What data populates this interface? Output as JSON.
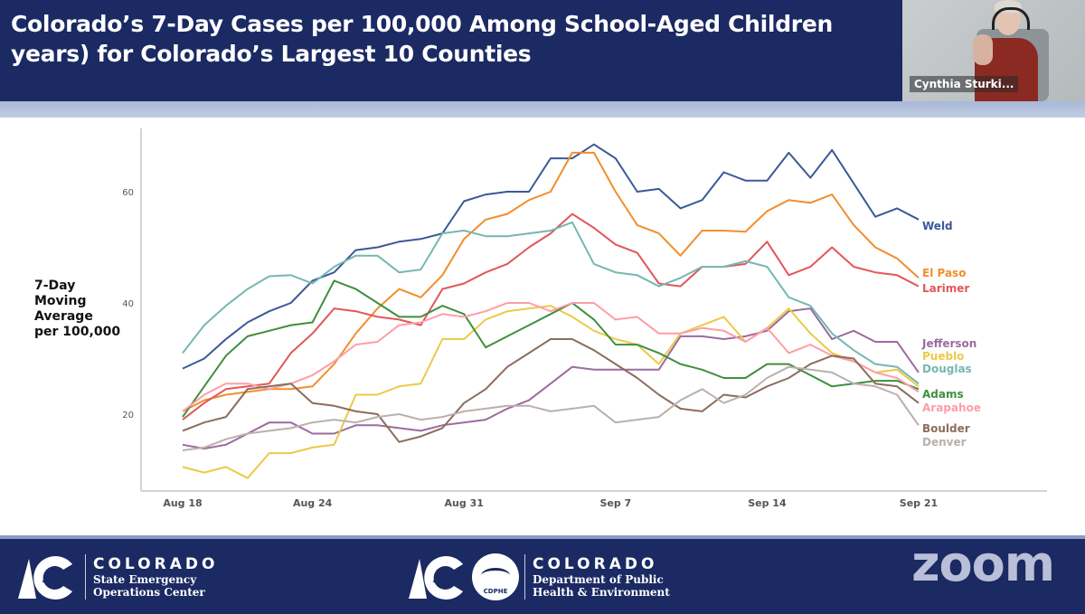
{
  "slide": {
    "title_line1": "Colorado’s 7-Day Cases per 100,000 Among School-Aged Children",
    "title_line2": "years) for Colorado’s Largest 10 Counties",
    "header_bg": "#1b2a63"
  },
  "video": {
    "participant_name": "Cynthia Sturki..."
  },
  "footer": {
    "logo1_title": "COLORADO",
    "logo1_sub1": "State Emergency",
    "logo1_sub2": "Operations Center",
    "logo2_badge": "CDPHE",
    "logo2_title": "COLORADO",
    "logo2_sub1": "Department of Public",
    "logo2_sub2": "Health & Environment",
    "app_watermark": "zoom"
  },
  "chart_data": {
    "type": "line",
    "title": "",
    "xlabel": "",
    "ylabel": "7-Day Moving Average per 100,000",
    "ylabel_lines": [
      "7-Day",
      "Moving",
      "Average",
      "per 100,000"
    ],
    "x_start": "Aug 18",
    "x_end": "Sep 21",
    "num_days": 35,
    "x_ticks": [
      {
        "label": "Aug 18",
        "day": 0
      },
      {
        "label": "Aug 24",
        "day": 6
      },
      {
        "label": "Aug 31",
        "day": 13
      },
      {
        "label": "Sep 7",
        "day": 20
      },
      {
        "label": "Sep 14",
        "day": 27
      },
      {
        "label": "Sep 21",
        "day": 34
      }
    ],
    "y_ticks": [
      20,
      40,
      60
    ],
    "ylim": [
      0,
      70
    ],
    "grid": false,
    "legend": "direct-labels-right",
    "series": [
      {
        "name": "Weld",
        "color": "#3b5998",
        "values": [
          28.2,
          30.0,
          33.5,
          36.5,
          38.5,
          40.0,
          44.0,
          45.5,
          49.5,
          50.0,
          51.0,
          51.5,
          52.5,
          58.3,
          59.5,
          60.0,
          60.0,
          66.0,
          66.0,
          68.5,
          66.0,
          60.0,
          60.5,
          57.0,
          58.5,
          63.5,
          62.0,
          62.0,
          67.0,
          62.5,
          67.5,
          61.5,
          55.5,
          57.0,
          55.0
        ]
      },
      {
        "name": "El Paso",
        "color": "#f28e2b",
        "values": [
          20.5,
          22.5,
          23.5,
          24.0,
          24.5,
          24.5,
          25.0,
          29.0,
          34.5,
          39.0,
          42.5,
          41.0,
          45.0,
          51.5,
          55.0,
          56.0,
          58.5,
          60.0,
          67.0,
          67.0,
          60.0,
          54.0,
          52.5,
          48.5,
          53.0,
          53.0,
          52.8,
          56.5,
          58.5,
          58.0,
          59.5,
          54.0,
          50.0,
          48.0,
          44.5
        ]
      },
      {
        "name": "Larimer",
        "color": "#e15759",
        "values": [
          19.0,
          22.0,
          24.5,
          25.0,
          25.5,
          31.0,
          34.5,
          39.0,
          38.5,
          37.5,
          37.0,
          36.0,
          42.5,
          43.5,
          45.5,
          47.0,
          50.0,
          52.5,
          56.0,
          53.5,
          50.5,
          49.0,
          43.5,
          43.0,
          46.5,
          46.5,
          47.0,
          51.0,
          45.0,
          46.5,
          50.0,
          46.5,
          45.5,
          45.0,
          43.0
        ]
      },
      {
        "name": "Jefferson",
        "color": "#9c6b9e",
        "values": [
          14.5,
          13.8,
          14.5,
          16.5,
          18.5,
          18.5,
          16.5,
          16.5,
          18.0,
          18.0,
          17.5,
          17.0,
          18.0,
          18.5,
          19.0,
          21.0,
          22.5,
          25.5,
          28.5,
          28.0,
          28.0,
          28.0,
          28.0,
          34.0,
          34.0,
          33.5,
          34.0,
          35.0,
          38.5,
          39.0,
          33.5,
          35.0,
          33.0,
          33.0,
          27.5
        ]
      },
      {
        "name": "Pueblo",
        "color": "#edc948",
        "values": [
          10.5,
          9.5,
          10.5,
          8.5,
          13.0,
          13.0,
          14.0,
          14.5,
          23.5,
          23.5,
          25.0,
          25.5,
          33.5,
          33.5,
          37.0,
          38.5,
          39.0,
          39.5,
          37.5,
          35.0,
          33.5,
          32.5,
          29.0,
          34.5,
          36.0,
          37.5,
          33.0,
          35.5,
          39.0,
          34.5,
          31.0,
          29.5,
          27.5,
          28.0,
          25.0
        ]
      },
      {
        "name": "Douglas",
        "color": "#76b7b2",
        "values": [
          31.0,
          36.0,
          39.5,
          42.5,
          44.8,
          45.0,
          43.5,
          46.5,
          48.5,
          48.5,
          45.5,
          46.0,
          52.5,
          53.0,
          52.0,
          52.0,
          52.5,
          53.0,
          54.5,
          47.0,
          45.5,
          45.0,
          43.0,
          44.5,
          46.5,
          46.5,
          47.5,
          46.5,
          41.0,
          39.5,
          34.5,
          31.5,
          29.0,
          28.5,
          25.5
        ]
      },
      {
        "name": "Adams",
        "color": "#3f8f3f",
        "values": [
          19.5,
          25.0,
          30.5,
          34.0,
          35.0,
          36.0,
          36.5,
          44.0,
          42.5,
          40.0,
          37.5,
          37.5,
          39.5,
          38.0,
          32.0,
          34.0,
          36.0,
          38.0,
          40.0,
          37.0,
          32.5,
          32.5,
          31.0,
          29.0,
          28.0,
          26.5,
          26.5,
          29.0,
          29.0,
          27.0,
          25.0,
          25.5,
          26.0,
          26.0,
          24.5
        ]
      },
      {
        "name": "Arapahoe",
        "color": "#ff9da7",
        "values": [
          20.5,
          23.5,
          25.5,
          25.5,
          24.5,
          25.5,
          27.0,
          29.5,
          32.5,
          33.0,
          36.0,
          36.5,
          38.0,
          37.5,
          38.5,
          40.0,
          40.0,
          38.5,
          40.0,
          40.0,
          37.0,
          37.5,
          34.5,
          34.5,
          35.5,
          35.0,
          33.0,
          35.5,
          31.0,
          32.5,
          30.5,
          29.5,
          27.5,
          26.5,
          24.0
        ]
      },
      {
        "name": "Boulder",
        "color": "#8c6d5b",
        "values": [
          17.0,
          18.5,
          19.5,
          24.5,
          25.0,
          25.5,
          22.0,
          21.5,
          20.5,
          20.0,
          15.0,
          16.0,
          17.5,
          22.0,
          24.5,
          28.5,
          31.0,
          33.5,
          33.5,
          31.5,
          29.0,
          26.5,
          23.5,
          21.0,
          20.5,
          23.5,
          23.0,
          25.0,
          26.5,
          29.0,
          30.5,
          30.0,
          25.5,
          25.0,
          22.0
        ]
      },
      {
        "name": "Denver",
        "color": "#bab0ac",
        "values": [
          13.5,
          14.0,
          15.5,
          16.5,
          17.0,
          17.5,
          18.5,
          19.0,
          18.5,
          19.5,
          20.0,
          19.0,
          19.5,
          20.5,
          21.0,
          21.5,
          21.5,
          20.5,
          21.0,
          21.5,
          18.5,
          19.0,
          19.5,
          22.5,
          24.5,
          22.0,
          23.5,
          26.5,
          28.5,
          28.0,
          27.5,
          25.5,
          25.0,
          23.5,
          18.0
        ]
      }
    ]
  }
}
